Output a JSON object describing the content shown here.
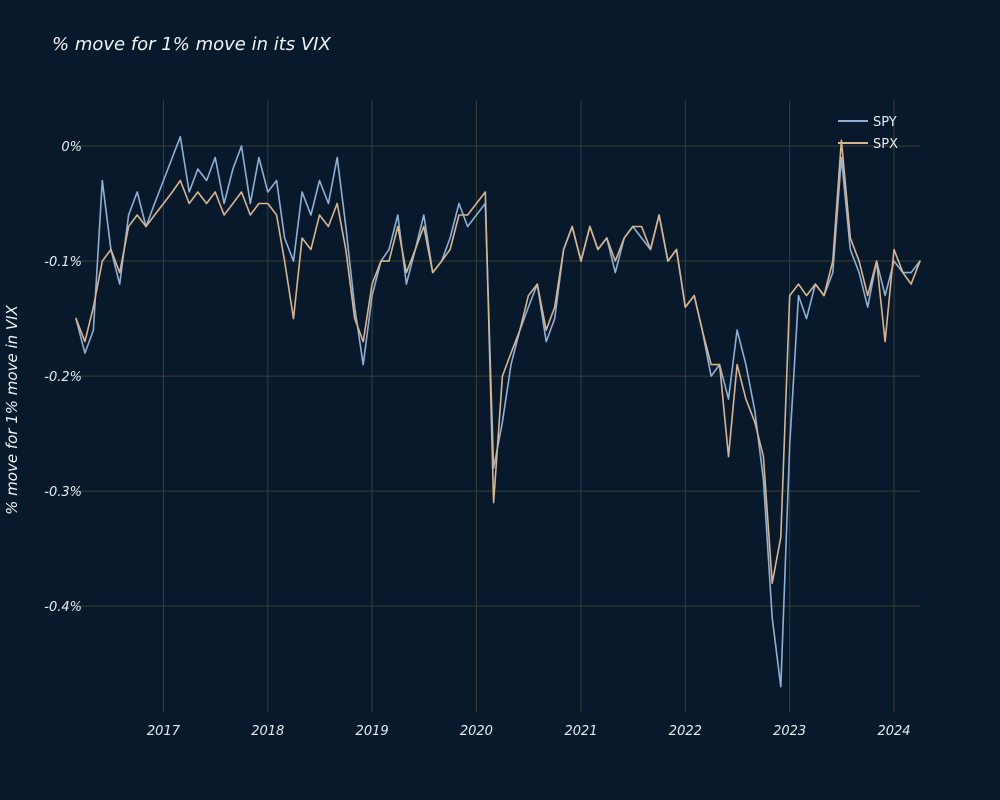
{
  "chart_data": {
    "type": "line",
    "title": "% move for 1% move in its VIX",
    "xlabel": "",
    "ylabel": "% move for 1% move in VIX",
    "xlim": [
      "2016-03-01",
      "2024-04-01"
    ],
    "ylim": [
      -0.492,
      0.04
    ],
    "x_ticks": [
      "2017",
      "2018",
      "2019",
      "2020",
      "2021",
      "2022",
      "2023",
      "2024"
    ],
    "y_ticks": [
      {
        "value": 0,
        "label": "0%"
      },
      {
        "value": -0.1,
        "label": "-0.1%"
      },
      {
        "value": -0.2,
        "label": "-0.2%"
      },
      {
        "value": -0.3,
        "label": "-0.3%"
      },
      {
        "value": -0.4,
        "label": "-0.4%"
      }
    ],
    "grid": true,
    "legend_position": "top-right",
    "colors": {
      "background": "#08192b",
      "grid": "#3a3f33",
      "SPY": "#8fb0d6",
      "SPX": "#d8b58f"
    },
    "series": [
      {
        "name": "SPY",
        "x": [
          "2016-03",
          "2016-04",
          "2016-05",
          "2016-06",
          "2016-07",
          "2016-08",
          "2016-09",
          "2016-10",
          "2016-11",
          "2016-12",
          "2017-01",
          "2017-02",
          "2017-03",
          "2017-04",
          "2017-05",
          "2017-06",
          "2017-07",
          "2017-08",
          "2017-09",
          "2017-10",
          "2017-11",
          "2017-12",
          "2018-01",
          "2018-02",
          "2018-03",
          "2018-04",
          "2018-05",
          "2018-06",
          "2018-07",
          "2018-08",
          "2018-09",
          "2018-10",
          "2018-11",
          "2018-12",
          "2019-01",
          "2019-02",
          "2019-03",
          "2019-04",
          "2019-05",
          "2019-06",
          "2019-07",
          "2019-08",
          "2019-09",
          "2019-10",
          "2019-11",
          "2019-12",
          "2020-01",
          "2020-02",
          "2020-03",
          "2020-04",
          "2020-05",
          "2020-06",
          "2020-07",
          "2020-08",
          "2020-09",
          "2020-10",
          "2020-11",
          "2020-12",
          "2021-01",
          "2021-02",
          "2021-03",
          "2021-04",
          "2021-05",
          "2021-06",
          "2021-07",
          "2021-08",
          "2021-09",
          "2021-10",
          "2021-11",
          "2021-12",
          "2022-01",
          "2022-02",
          "2022-03",
          "2022-04",
          "2022-05",
          "2022-06",
          "2022-07",
          "2022-08",
          "2022-09",
          "2022-10",
          "2022-11",
          "2022-12",
          "2023-01",
          "2023-02",
          "2023-03",
          "2023-04",
          "2023-05",
          "2023-06",
          "2023-07",
          "2023-08",
          "2023-09",
          "2023-10",
          "2023-11",
          "2023-12",
          "2024-01",
          "2024-02",
          "2024-03",
          "2024-04"
        ],
        "y": [
          -0.15,
          -0.18,
          -0.16,
          -0.03,
          -0.09,
          -0.12,
          -0.06,
          -0.04,
          -0.07,
          -0.05,
          -0.03,
          -0.01,
          0.008,
          -0.04,
          -0.02,
          -0.03,
          -0.01,
          -0.05,
          -0.02,
          0.0,
          -0.05,
          -0.01,
          -0.04,
          -0.03,
          -0.08,
          -0.1,
          -0.04,
          -0.06,
          -0.03,
          -0.05,
          -0.01,
          -0.07,
          -0.14,
          -0.19,
          -0.13,
          -0.1,
          -0.09,
          -0.06,
          -0.12,
          -0.09,
          -0.06,
          -0.11,
          -0.1,
          -0.08,
          -0.05,
          -0.07,
          -0.06,
          -0.05,
          -0.28,
          -0.24,
          -0.19,
          -0.16,
          -0.14,
          -0.12,
          -0.17,
          -0.15,
          -0.09,
          -0.07,
          -0.1,
          -0.07,
          -0.09,
          -0.08,
          -0.11,
          -0.08,
          -0.07,
          -0.08,
          -0.09,
          -0.06,
          -0.1,
          -0.09,
          -0.14,
          -0.13,
          -0.16,
          -0.2,
          -0.19,
          -0.22,
          -0.16,
          -0.19,
          -0.23,
          -0.29,
          -0.41,
          -0.47,
          -0.26,
          -0.13,
          -0.15,
          -0.12,
          -0.13,
          -0.11,
          -0.01,
          -0.09,
          -0.11,
          -0.14,
          -0.1,
          -0.13,
          -0.1,
          -0.11,
          -0.11,
          -0.1
        ]
      },
      {
        "name": "SPX",
        "x": [
          "2016-03",
          "2016-04",
          "2016-05",
          "2016-06",
          "2016-07",
          "2016-08",
          "2016-09",
          "2016-10",
          "2016-11",
          "2016-12",
          "2017-01",
          "2017-02",
          "2017-03",
          "2017-04",
          "2017-05",
          "2017-06",
          "2017-07",
          "2017-08",
          "2017-09",
          "2017-10",
          "2017-11",
          "2017-12",
          "2018-01",
          "2018-02",
          "2018-03",
          "2018-04",
          "2018-05",
          "2018-06",
          "2018-07",
          "2018-08",
          "2018-09",
          "2018-10",
          "2018-11",
          "2018-12",
          "2019-01",
          "2019-02",
          "2019-03",
          "2019-04",
          "2019-05",
          "2019-06",
          "2019-07",
          "2019-08",
          "2019-09",
          "2019-10",
          "2019-11",
          "2019-12",
          "2020-01",
          "2020-02",
          "2020-03",
          "2020-04",
          "2020-05",
          "2020-06",
          "2020-07",
          "2020-08",
          "2020-09",
          "2020-10",
          "2020-11",
          "2020-12",
          "2021-01",
          "2021-02",
          "2021-03",
          "2021-04",
          "2021-05",
          "2021-06",
          "2021-07",
          "2021-08",
          "2021-09",
          "2021-10",
          "2021-11",
          "2021-12",
          "2022-01",
          "2022-02",
          "2022-03",
          "2022-04",
          "2022-05",
          "2022-06",
          "2022-07",
          "2022-08",
          "2022-09",
          "2022-10",
          "2022-11",
          "2022-12",
          "2023-01",
          "2023-02",
          "2023-03",
          "2023-04",
          "2023-05",
          "2023-06",
          "2023-07",
          "2023-08",
          "2023-09",
          "2023-10",
          "2023-11",
          "2023-12",
          "2024-01",
          "2024-02",
          "2024-03",
          "2024-04"
        ],
        "y": [
          -0.15,
          -0.17,
          -0.14,
          -0.1,
          -0.09,
          -0.11,
          -0.07,
          -0.06,
          -0.07,
          -0.06,
          -0.05,
          -0.04,
          -0.03,
          -0.05,
          -0.04,
          -0.05,
          -0.04,
          -0.06,
          -0.05,
          -0.04,
          -0.06,
          -0.05,
          -0.05,
          -0.06,
          -0.1,
          -0.15,
          -0.08,
          -0.09,
          -0.06,
          -0.07,
          -0.05,
          -0.09,
          -0.15,
          -0.17,
          -0.12,
          -0.1,
          -0.1,
          -0.07,
          -0.11,
          -0.09,
          -0.07,
          -0.11,
          -0.1,
          -0.09,
          -0.06,
          -0.06,
          -0.05,
          -0.04,
          -0.31,
          -0.2,
          -0.18,
          -0.16,
          -0.13,
          -0.12,
          -0.16,
          -0.14,
          -0.09,
          -0.07,
          -0.1,
          -0.07,
          -0.09,
          -0.08,
          -0.1,
          -0.08,
          -0.07,
          -0.07,
          -0.09,
          -0.06,
          -0.1,
          -0.09,
          -0.14,
          -0.13,
          -0.16,
          -0.19,
          -0.19,
          -0.27,
          -0.19,
          -0.22,
          -0.24,
          -0.27,
          -0.38,
          -0.34,
          -0.13,
          -0.12,
          -0.13,
          -0.12,
          -0.13,
          -0.1,
          0.005,
          -0.08,
          -0.1,
          -0.13,
          -0.1,
          -0.17,
          -0.09,
          -0.11,
          -0.12,
          -0.1
        ]
      }
    ]
  }
}
